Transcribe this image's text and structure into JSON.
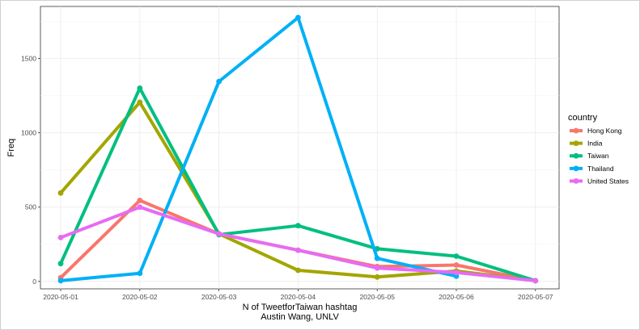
{
  "chart_data": {
    "type": "line",
    "xlabel": "N of TweetforTaiwan hashtag",
    "caption": "Austin Wang, UNLV",
    "ylabel": "Freq",
    "categories": [
      "2020-05-01",
      "2020-05-02",
      "2020-05-03",
      "2020-05-04",
      "2020-05-05",
      "2020-05-06",
      "2020-05-07"
    ],
    "y_ticks": [
      0,
      500,
      1000,
      1500
    ],
    "ylim": [
      -50,
      1850
    ],
    "grid": true,
    "legend_title": "country",
    "legend_position": "right",
    "series": [
      {
        "name": "Hong Kong",
        "color": "#F8766D",
        "values": [
          25,
          545,
          320,
          210,
          100,
          110,
          5
        ]
      },
      {
        "name": "India",
        "color": "#A3A500",
        "values": [
          595,
          1205,
          320,
          75,
          30,
          70,
          5
        ]
      },
      {
        "name": "Taiwan",
        "color": "#00BF7D",
        "values": [
          120,
          1300,
          315,
          375,
          220,
          170,
          5
        ]
      },
      {
        "name": "Thailand",
        "color": "#00B0F6",
        "values": [
          5,
          55,
          1345,
          1775,
          155,
          35,
          null
        ]
      },
      {
        "name": "United States",
        "color": "#E76BF3",
        "values": [
          295,
          500,
          320,
          210,
          90,
          60,
          5
        ]
      }
    ]
  }
}
